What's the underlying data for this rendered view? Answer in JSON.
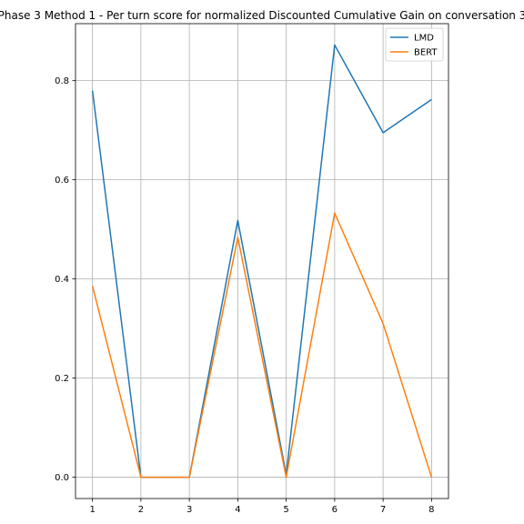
{
  "chart_data": {
    "type": "line",
    "title": "Phase 3 Method 1 - Per turn score for normalized Discounted Cumulative Gain on conversation 3",
    "xlabel": "",
    "ylabel": "",
    "x": [
      1,
      2,
      3,
      4,
      5,
      6,
      7,
      8
    ],
    "xticks": [
      "1",
      "2",
      "3",
      "4",
      "5",
      "6",
      "7",
      "8"
    ],
    "yticks": [
      "0.0",
      "0.2",
      "0.4",
      "0.6",
      "0.8"
    ],
    "xlim": [
      0.65,
      8.35
    ],
    "ylim": [
      -0.043,
      0.915
    ],
    "grid": true,
    "legend_position": "top-right",
    "series": [
      {
        "name": "LMD",
        "color": "#1f77b4",
        "values": [
          0.78,
          0.0,
          0.0,
          0.518,
          0.005,
          0.872,
          0.695,
          0.762
        ]
      },
      {
        "name": "BERT",
        "color": "#ff7f0e",
        "values": [
          0.386,
          0.0,
          0.0,
          0.484,
          0.0,
          0.533,
          0.31,
          0.0
        ]
      }
    ]
  }
}
